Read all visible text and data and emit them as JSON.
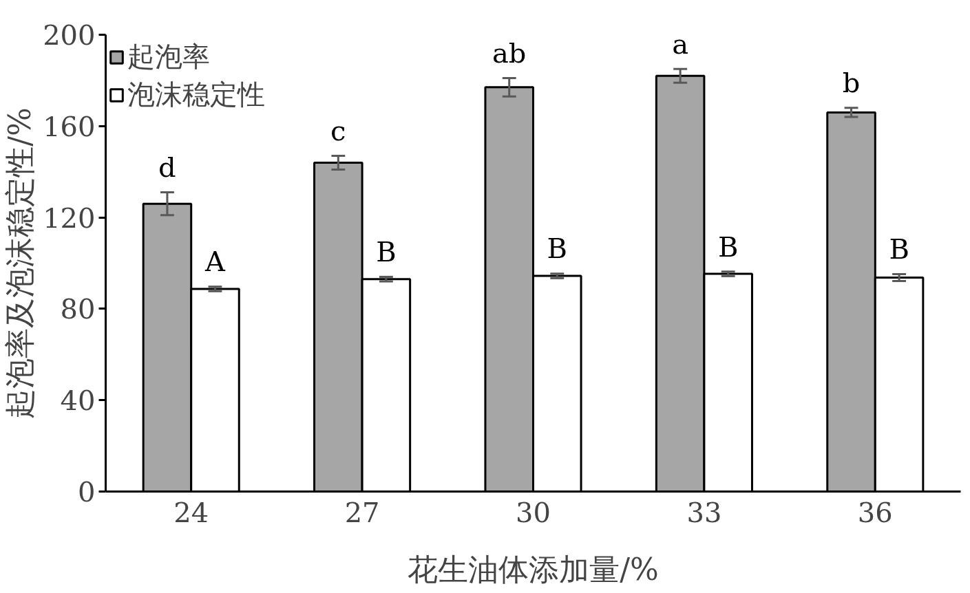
{
  "chart_data": {
    "type": "bar",
    "xlabel": "花生油体添加量/%",
    "ylabel": "起泡率及泡沫稳定性/%",
    "categories": [
      "24",
      "27",
      "30",
      "33",
      "36"
    ],
    "series": [
      {
        "name": "起泡率",
        "color": "#a6a6a6",
        "values": [
          126,
          144,
          177,
          182,
          166
        ],
        "errors": [
          5,
          3,
          4,
          3,
          2
        ],
        "value_labels": [
          "d",
          "c",
          "ab",
          "a",
          "b"
        ]
      },
      {
        "name": "泡沫稳定性",
        "color": "#ffffff",
        "values": [
          88.7,
          93,
          94.4,
          95.3,
          93.7
        ],
        "errors": [
          1,
          1,
          1,
          1,
          1.5
        ],
        "value_labels": [
          "A",
          "B",
          "B",
          "B",
          "B"
        ]
      }
    ],
    "ylim": [
      0,
      200
    ],
    "yticks": [
      0,
      40,
      80,
      120,
      160,
      200
    ],
    "legend": "top left"
  }
}
